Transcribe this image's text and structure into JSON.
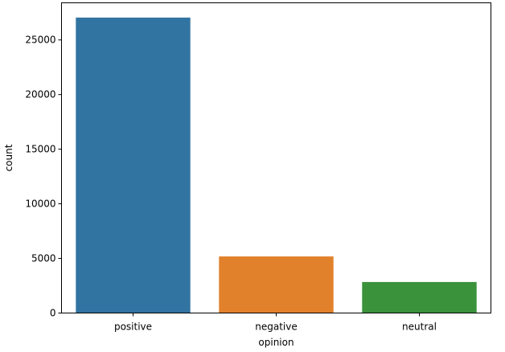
{
  "chart_data": {
    "type": "bar",
    "title": "",
    "xlabel": "opinion",
    "ylabel": "count",
    "categories": [
      "positive",
      "negative",
      "neutral"
    ],
    "values": [
      27050,
      5180,
      2840
    ],
    "colors": [
      "#3274a1",
      "#e1812c",
      "#3a923a"
    ],
    "ylim": [
      0,
      28400
    ],
    "yticks": [
      0,
      5000,
      10000,
      15000,
      20000,
      25000
    ],
    "ytick_labels": [
      "0",
      "5000",
      "10000",
      "15000",
      "20000",
      "25000"
    ],
    "grid": false,
    "legend": "none"
  }
}
